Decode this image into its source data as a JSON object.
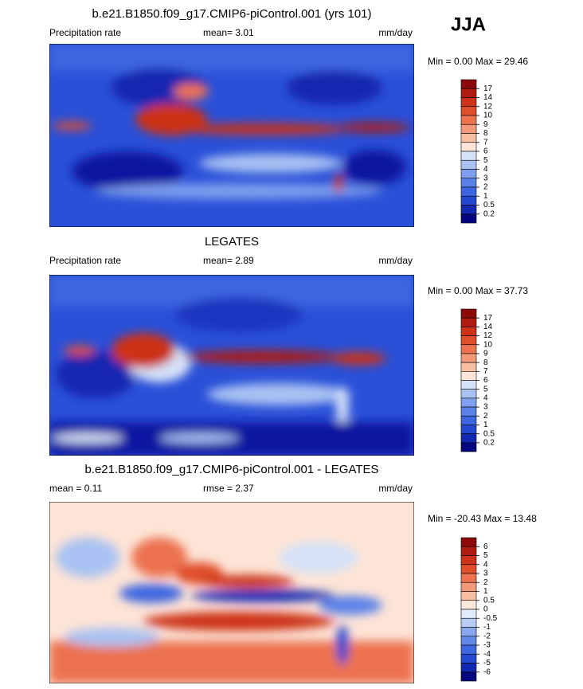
{
  "season": "JJA",
  "panels": [
    {
      "title": "b.e21.B1850.f09_g17.CMIP6-piControl.001 (yrs 101)",
      "left": "Precipitation rate",
      "center": "mean=   3.01",
      "units": "mm/day",
      "range": "Min =   0.00 Max =  29.46",
      "colorbar": {
        "labels": [
          "17",
          "14",
          "12",
          "10",
          "9",
          "8",
          "7",
          "6",
          "5",
          "4",
          "3",
          "2",
          "1",
          "0.5",
          "0.2"
        ],
        "colors": [
          "#8c0a0a",
          "#b01a10",
          "#cc3318",
          "#e04e2c",
          "#ec7250",
          "#f39878",
          "#f8bea2",
          "#fde4d6",
          "#d6e2f8",
          "#a9c2f3",
          "#7e9fee",
          "#5a82e8",
          "#3c66e0",
          "#2448d2",
          "#1228b0",
          "#04047e"
        ]
      }
    },
    {
      "title": "LEGATES",
      "left": "Precipitation rate",
      "center": "mean=   2.89",
      "units": "mm/day",
      "range": "Min =   0.00 Max =  37.73",
      "colorbar": {
        "labels": [
          "17",
          "14",
          "12",
          "10",
          "9",
          "8",
          "7",
          "6",
          "5",
          "4",
          "3",
          "2",
          "1",
          "0.5",
          "0.2"
        ],
        "colors": [
          "#8c0a0a",
          "#b01a10",
          "#cc3318",
          "#e04e2c",
          "#ec7250",
          "#f39878",
          "#f8bea2",
          "#fde4d6",
          "#d6e2f8",
          "#a9c2f3",
          "#7e9fee",
          "#5a82e8",
          "#3c66e0",
          "#2448d2",
          "#1228b0",
          "#04047e"
        ]
      }
    },
    {
      "title": "b.e21.B1850.f09_g17.CMIP6-piControl.001 - LEGATES",
      "left": "mean =   0.11",
      "center": "rmse =   2.37",
      "units": "mm/day",
      "range": "Min = -20.43 Max =  13.48",
      "colorbar": {
        "labels": [
          "6",
          "5",
          "4",
          "3",
          "2",
          "1",
          "0.5",
          "0",
          "-0.5",
          "-1",
          "-2",
          "-3",
          "-4",
          "-5",
          "-6"
        ],
        "colors": [
          "#8c0a0a",
          "#b01a10",
          "#cc3318",
          "#e04e2c",
          "#ec7250",
          "#f39878",
          "#f8bea2",
          "#fde8dc",
          "#e2ebfa",
          "#b8cdf5",
          "#8aa8ef",
          "#6288e8",
          "#3e68e0",
          "#244ad2",
          "#1228b0",
          "#04047e"
        ]
      }
    }
  ]
}
